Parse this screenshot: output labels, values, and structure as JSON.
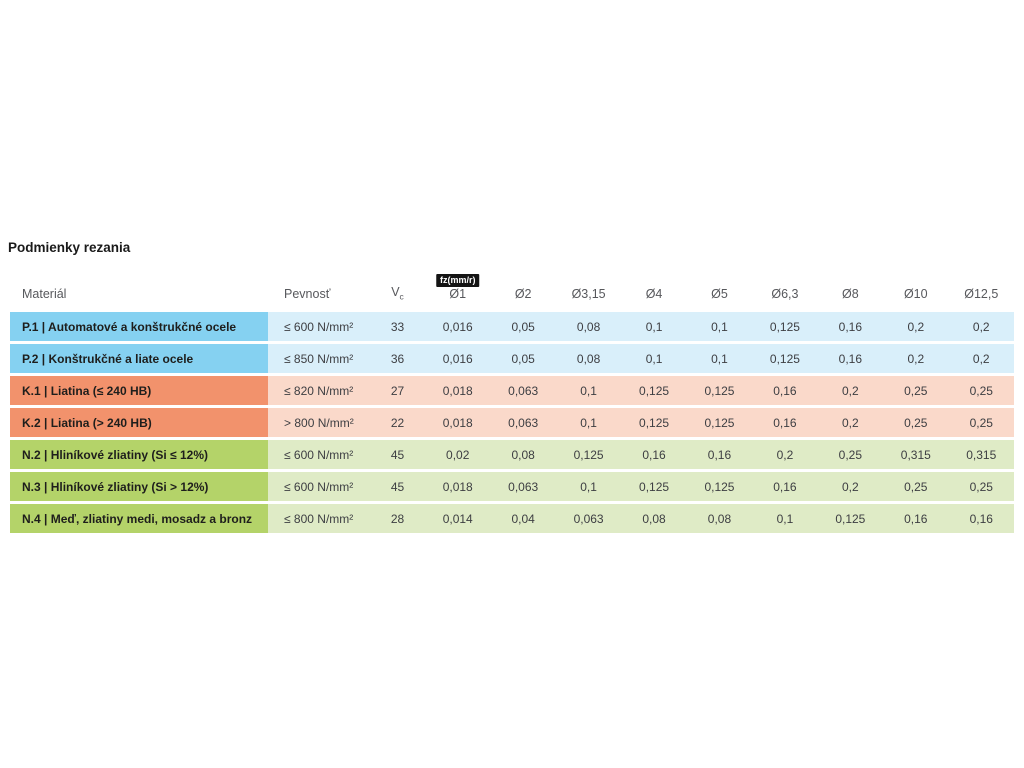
{
  "section": {
    "title": "Podmienky rezania"
  },
  "table": {
    "badge": {
      "label": "fz(mm/r)",
      "bg": "#141414",
      "color": "#ffffff"
    },
    "headers": {
      "material": "Materiál",
      "strength": "Pevnosť",
      "vc_main": "V",
      "vc_sub": "c",
      "diameters": [
        "Ø1",
        "Ø2",
        "Ø3,15",
        "Ø4",
        "Ø5",
        "Ø6,3",
        "Ø8",
        "Ø10",
        "Ø12,5"
      ]
    },
    "groups": {
      "steel": {
        "label_bg": "#85d1f1",
        "body_bg": "#d9effa"
      },
      "castiron": {
        "label_bg": "#f2926c",
        "body_bg": "#fad9ca"
      },
      "nonferrous": {
        "label_bg": "#b4d369",
        "body_bg": "#dfebc6"
      }
    },
    "rows": [
      {
        "group": "steel",
        "material": "P.1 | Automatové a konštrukčné ocele",
        "strength": "≤ 600 N/mm²",
        "vc": "33",
        "fz": [
          "0,016",
          "0,05",
          "0,08",
          "0,1",
          "0,1",
          "0,125",
          "0,16",
          "0,2",
          "0,2"
        ]
      },
      {
        "group": "steel",
        "material": "P.2 | Konštrukčné a liate ocele",
        "strength": "≤ 850 N/mm²",
        "vc": "36",
        "fz": [
          "0,016",
          "0,05",
          "0,08",
          "0,1",
          "0,1",
          "0,125",
          "0,16",
          "0,2",
          "0,2"
        ]
      },
      {
        "group": "castiron",
        "material": "K.1 | Liatina (≤ 240 HB)",
        "strength": "≤ 820 N/mm²",
        "vc": "27",
        "fz": [
          "0,018",
          "0,063",
          "0,1",
          "0,125",
          "0,125",
          "0,16",
          "0,2",
          "0,25",
          "0,25"
        ]
      },
      {
        "group": "castiron",
        "material": "K.2 | Liatina (> 240 HB)",
        "strength": "> 800 N/mm²",
        "vc": "22",
        "fz": [
          "0,018",
          "0,063",
          "0,1",
          "0,125",
          "0,125",
          "0,16",
          "0,2",
          "0,25",
          "0,25"
        ]
      },
      {
        "group": "nonferrous",
        "material": "N.2 | Hliníkové zliatiny (Si ≤ 12%)",
        "strength": "≤ 600 N/mm²",
        "vc": "45",
        "fz": [
          "0,02",
          "0,08",
          "0,125",
          "0,16",
          "0,16",
          "0,2",
          "0,25",
          "0,315",
          "0,315"
        ]
      },
      {
        "group": "nonferrous",
        "material": "N.3 | Hliníkové zliatiny (Si > 12%)",
        "strength": "≤ 600 N/mm²",
        "vc": "45",
        "fz": [
          "0,018",
          "0,063",
          "0,1",
          "0,125",
          "0,125",
          "0,16",
          "0,2",
          "0,25",
          "0,25"
        ]
      },
      {
        "group": "nonferrous",
        "material": "N.4 | Meď, zliatiny medi, mosadz a bronz",
        "strength": "≤ 800 N/mm²",
        "vc": "28",
        "fz": [
          "0,014",
          "0,04",
          "0,063",
          "0,08",
          "0,08",
          "0,1",
          "0,125",
          "0,16",
          "0,16"
        ]
      }
    ]
  }
}
